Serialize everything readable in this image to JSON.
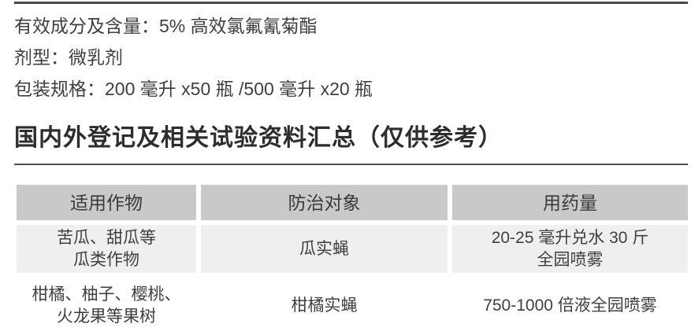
{
  "product": {
    "info_lines": [
      "有效成分及含量：5% 高效氯氟氰菊酯",
      "剂型：微乳剂",
      "包装规格：200 毫升 x50 瓶 /500 毫升 x20 瓶"
    ]
  },
  "section": {
    "heading": "国内外登记及相关试验资料汇总（仅供参考）"
  },
  "table": {
    "headers": [
      "适用作物",
      "防治对象",
      "用药量"
    ],
    "rows": [
      {
        "crop": [
          "苦瓜、甜瓜等",
          "瓜类作物"
        ],
        "target": "瓜实蝇",
        "dosage": [
          "20-25 毫升兑水 30 斤",
          "全园喷雾"
        ]
      },
      {
        "crop": [
          "柑橘、柚子、樱桃、",
          "火龙果等果树"
        ],
        "target": "柑橘实蝇",
        "dosage": [
          "750-1000 倍液全园喷雾"
        ]
      }
    ]
  },
  "colors": {
    "table_header_bg": "#c9c9c9",
    "table_row_alt_bg": "#efefef",
    "rule": "#4a4a4a",
    "text": "#3e3e3e"
  }
}
